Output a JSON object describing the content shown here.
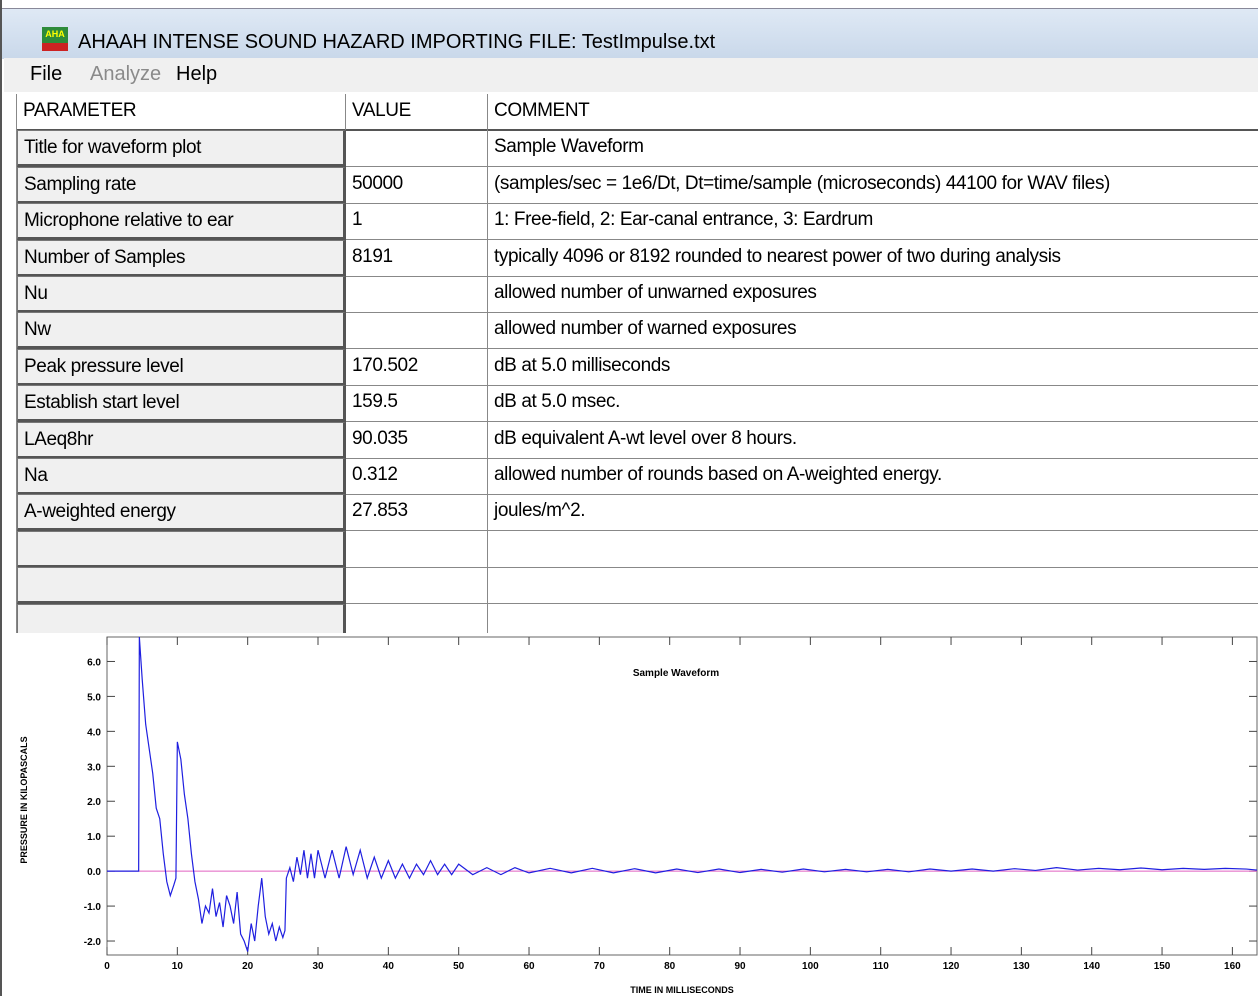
{
  "window": {
    "title": "AHAAH INTENSE SOUND HAZARD IMPORTING FILE: TestImpulse.txt",
    "icon": "AHA"
  },
  "menu": [
    "File",
    "Analyze",
    "Help"
  ],
  "table": {
    "header": [
      "PARAMETER",
      "VALUE",
      "COMMENT"
    ],
    "rows": [
      {
        "parameter": "Title for waveform plot",
        "comment": "Sample Waveform"
      },
      {
        "parameter": "Sampling rate",
        "value": "50000",
        "comment": "(samples/sec = 1e6/Dt, Dt=time/sample (microseconds) 44100 for WAV files)"
      },
      {
        "parameter": "Microphone relative to ear",
        "value": "1",
        "comment": "1: Free-field, 2: Ear-canal entrance, 3: Eardrum"
      },
      {
        "parameter": "Number of Samples",
        "value": "8191",
        "comment": "typically 4096 or 8192 rounded to nearest power of two during analysis"
      },
      {
        "parameter": "Nu",
        "comment": "allowed number of unwarned exposures"
      },
      {
        "parameter": "Nw",
        "comment": "allowed number of warned exposures"
      },
      {
        "parameter": "Peak pressure level",
        "value": "170.502",
        "comment": "dB at 5.0 milliseconds"
      },
      {
        "parameter": "Establish start level",
        "value": "159.5",
        "comment": "dB at 5.0 msec."
      },
      {
        "parameter": "LAeq8hr",
        "value": "90.035",
        "comment": "dB equivalent A-wt level over 8 hours."
      },
      {
        "parameter": "Na",
        "value": "0.312",
        "comment": "allowed number of rounds based on A-weighted energy."
      },
      {
        "parameter": "A-weighted energy",
        "value": "27.853",
        "comment": "joules/m^2."
      }
    ]
  },
  "chart_data": {
    "type": "line",
    "title": "Sample Waveform",
    "xlabel": "TIME IN MILLISECONDS",
    "ylabel": "PRESSURE IN KILOPASCALS",
    "xlim": [
      0,
      163.5
    ],
    "ylim": [
      -2.4,
      6.7
    ],
    "xticks": [
      0,
      10,
      20,
      30,
      40,
      50,
      60,
      70,
      80,
      90,
      100,
      110,
      120,
      130,
      140,
      150,
      160
    ],
    "yticks": [
      {
        "value": -2,
        "label": "-2.0"
      },
      {
        "value": -1,
        "label": "-1.0"
      },
      {
        "value": 0,
        "label": "0.0"
      },
      {
        "value": 1,
        "label": "1.0"
      },
      {
        "value": 2,
        "label": "2.0"
      },
      {
        "value": 3,
        "label": "3.0"
      },
      {
        "value": 4,
        "label": "4.0"
      },
      {
        "value": 5,
        "label": "5.0"
      },
      {
        "value": 6,
        "label": "6.0"
      }
    ],
    "color": "#1f1fe0",
    "x": [
      0,
      4.5,
      4.6,
      5,
      5.5,
      6,
      6.5,
      7,
      7.5,
      8,
      8.5,
      9,
      9.5,
      9.8,
      10,
      10.5,
      11,
      11.5,
      12,
      12.5,
      13,
      13.5,
      14,
      14.5,
      15,
      15.5,
      16,
      16.5,
      17,
      17.5,
      18,
      18.5,
      19,
      19.5,
      20,
      20.5,
      21,
      21.5,
      22,
      22.5,
      23,
      23.5,
      24,
      24.5,
      25,
      25.3,
      25.5,
      26,
      26.5,
      27,
      27.5,
      28,
      28.5,
      29,
      29.5,
      30,
      31,
      32,
      33,
      34,
      35,
      36,
      37,
      38,
      39,
      40,
      41,
      42,
      43,
      44,
      45,
      46,
      47,
      48,
      49,
      50,
      52,
      54,
      56,
      58,
      60,
      63,
      66,
      69,
      72,
      75,
      78,
      81,
      84,
      87,
      90,
      93,
      96,
      99,
      102,
      105,
      108,
      111,
      114,
      117,
      120,
      123,
      126,
      129,
      132,
      135,
      138,
      141,
      144,
      147,
      150,
      153,
      156,
      159,
      162,
      163.5
    ],
    "values": [
      0,
      0,
      6.7,
      5.5,
      4.2,
      3.5,
      2.8,
      1.8,
      1.5,
      0.5,
      -0.3,
      -0.7,
      -0.4,
      -0.2,
      3.7,
      3.2,
      2.2,
      1.5,
      0.5,
      -0.3,
      -0.8,
      -1.5,
      -1.0,
      -1.2,
      -0.5,
      -1.3,
      -0.9,
      -1.6,
      -0.7,
      -1.0,
      -1.5,
      -0.6,
      -1.8,
      -2.0,
      -2.3,
      -1.5,
      -2.0,
      -1.0,
      -0.2,
      -1.3,
      -1.8,
      -1.5,
      -2.0,
      -1.6,
      -1.9,
      -1.7,
      -0.2,
      0.1,
      -0.3,
      0.4,
      -0.1,
      0.6,
      -0.2,
      0.5,
      -0.2,
      0.6,
      -0.2,
      0.6,
      -0.2,
      0.7,
      -0.1,
      0.6,
      -0.2,
      0.4,
      -0.2,
      0.3,
      -0.2,
      0.2,
      -0.2,
      0.2,
      -0.1,
      0.3,
      -0.1,
      0.2,
      -0.1,
      0.2,
      -0.1,
      0.1,
      -0.1,
      0.1,
      -0.05,
      0.08,
      -0.05,
      0.08,
      -0.05,
      0.07,
      -0.05,
      0.06,
      -0.04,
      0.06,
      -0.04,
      0.05,
      -0.03,
      0.06,
      -0.02,
      0.05,
      -0.02,
      0.05,
      -0.02,
      0.06,
      0.0,
      0.06,
      0.0,
      0.07,
      0.02,
      0.1,
      0.03,
      0.08,
      0.04,
      0.09,
      0.04,
      0.08,
      0.05,
      0.08,
      0.06,
      0.03
    ]
  }
}
